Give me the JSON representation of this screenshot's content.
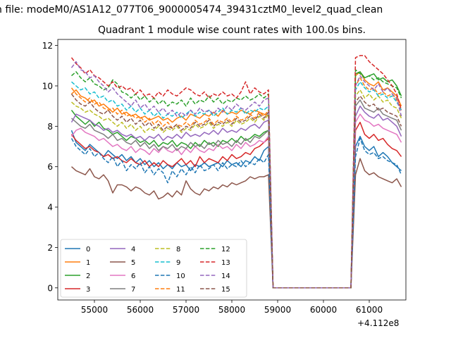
{
  "figure": {
    "suptitle": "n file: modeM0/AS1A12_077T06_9000005474_39431cztM0_level2_quad_clean",
    "title": "Quadrant 1 module wise count rates with 100.0s bins.",
    "x_offset_label": "+4.112e8"
  },
  "chart_data": {
    "type": "line",
    "title": "Quadrant 1 module wise count rates with 100.0s bins.",
    "xlim": [
      54200,
      61800
    ],
    "ylim": [
      -0.6,
      12.3
    ],
    "xticks": [
      55000,
      56000,
      57000,
      58000,
      59000,
      60000,
      61000
    ],
    "xtick_labels": [
      "55000",
      "56000",
      "57000",
      "58000",
      "59000",
      "60000",
      "61000"
    ],
    "yticks": [
      0,
      2,
      4,
      6,
      8,
      10,
      12
    ],
    "ytick_labels": [
      "0",
      "2",
      "4",
      "6",
      "8",
      "10",
      "12"
    ],
    "x_start": 54500,
    "x_step": 100,
    "gap": [
      58800,
      60600
    ],
    "legend": {
      "location": "lower-left",
      "columns": 4
    },
    "colors": [
      "#1f77b4",
      "#ff7f0e",
      "#2ca02c",
      "#d62728",
      "#9467bd",
      "#8c564b",
      "#e377c2",
      "#7f7f7f",
      "#bcbd22",
      "#17becf"
    ],
    "series": [
      {
        "name": "0",
        "style": "solid",
        "color": "#1f77b4",
        "values": [
          7.8,
          7.2,
          7.0,
          6.8,
          7.1,
          6.9,
          6.7,
          6.5,
          6.8,
          6.6,
          6.4,
          6.6,
          6.3,
          6.5,
          6.2,
          6.4,
          6.1,
          6.3,
          6.0,
          6.2,
          5.9,
          6.1,
          5.9,
          6.2,
          6.0,
          6.1,
          5.8,
          6.1,
          6.0,
          6.2,
          6.0,
          6.1,
          6.2,
          6.0,
          6.3,
          6.1,
          6.2,
          6.0,
          6.3,
          6.2,
          6.5,
          6.3,
          6.8,
          7.0
        ],
        "after": [
          0.0,
          0.0
        ],
        "tail": [
          0.0,
          7.0,
          7.5,
          7.0,
          6.8,
          7.0,
          6.5,
          6.7,
          6.5,
          6.2,
          6.0,
          5.8
        ]
      },
      {
        "name": "1",
        "style": "solid",
        "color": "#ff7f0e",
        "values": [
          9.6,
          9.8,
          9.5,
          9.4,
          9.2,
          9.3,
          9.0,
          9.1,
          8.9,
          8.7,
          8.9,
          8.6,
          8.7,
          8.5,
          8.6,
          8.4,
          8.5,
          8.3,
          8.4,
          8.5,
          8.3,
          8.4,
          8.2,
          8.4,
          8.5,
          8.3,
          8.6,
          8.5,
          8.4,
          8.6,
          8.5,
          8.7,
          8.5,
          8.8,
          8.6,
          8.7,
          8.6,
          8.8,
          8.7,
          8.6,
          8.8,
          8.7,
          8.6,
          8.5
        ],
        "after": [
          0.0,
          0.0
        ],
        "tail": [
          0.0,
          10.5,
          10.7,
          10.3,
          10.1,
          10.0,
          10.2,
          9.8,
          9.9,
          9.7,
          9.5,
          9.0
        ]
      },
      {
        "name": "2",
        "style": "solid",
        "color": "#2ca02c",
        "values": [
          8.8,
          8.5,
          8.3,
          8.1,
          8.3,
          8.0,
          8.2,
          7.9,
          7.8,
          7.6,
          7.7,
          7.5,
          7.3,
          7.5,
          7.4,
          7.2,
          7.3,
          7.1,
          7.3,
          7.0,
          7.2,
          7.1,
          7.3,
          7.0,
          7.2,
          7.1,
          6.9,
          7.2,
          7.0,
          7.3,
          7.1,
          7.2,
          7.0,
          7.3,
          7.2,
          7.4,
          7.2,
          7.5,
          7.3,
          7.4,
          7.6,
          7.5,
          7.7,
          7.8
        ],
        "after": [
          0.0,
          0.0
        ],
        "tail": [
          0.0,
          10.6,
          10.7,
          10.4,
          10.5,
          10.6,
          10.3,
          10.4,
          10.2,
          10.3,
          10.0,
          9.5
        ]
      },
      {
        "name": "3",
        "style": "solid",
        "color": "#d62728",
        "values": [
          7.6,
          7.3,
          7.1,
          6.9,
          7.0,
          6.8,
          6.7,
          6.5,
          6.6,
          6.4,
          6.5,
          6.3,
          6.2,
          6.4,
          6.2,
          6.1,
          6.3,
          6.0,
          6.2,
          6.0,
          6.3,
          6.1,
          6.0,
          6.2,
          6.4,
          6.1,
          6.3,
          6.0,
          6.5,
          6.2,
          6.4,
          6.3,
          6.2,
          6.5,
          6.3,
          6.6,
          6.4,
          6.5,
          6.7,
          6.6,
          6.9,
          7.0,
          7.2,
          7.4
        ],
        "after": [
          0.0,
          0.0
        ],
        "tail": [
          0.0,
          7.8,
          8.2,
          7.6,
          7.4,
          7.6,
          7.3,
          7.4,
          7.1,
          6.9,
          6.8,
          6.5
        ]
      },
      {
        "name": "4",
        "style": "solid",
        "color": "#9467bd",
        "values": [
          8.2,
          8.6,
          8.5,
          8.4,
          8.3,
          8.1,
          8.0,
          7.8,
          7.9,
          7.7,
          7.8,
          7.6,
          7.5,
          7.6,
          7.4,
          7.5,
          7.3,
          7.5,
          7.4,
          7.6,
          7.3,
          7.5,
          7.4,
          7.6,
          7.4,
          7.7,
          7.5,
          7.6,
          7.5,
          7.7,
          7.6,
          7.8,
          7.6,
          7.9,
          7.7,
          7.8,
          7.7,
          7.9,
          7.8,
          8.0,
          8.1,
          7.9,
          8.2,
          8.3
        ],
        "after": [
          0.0,
          0.0
        ],
        "tail": [
          0.0,
          8.5,
          9.0,
          8.7,
          8.5,
          8.4,
          8.6,
          8.3,
          8.4,
          8.2,
          8.0,
          7.5
        ]
      },
      {
        "name": "5",
        "style": "solid",
        "color": "#8c564b",
        "values": [
          6.0,
          5.8,
          5.7,
          5.6,
          5.9,
          5.5,
          5.4,
          5.6,
          5.3,
          4.7,
          5.1,
          5.1,
          5.0,
          4.8,
          5.0,
          4.9,
          4.7,
          4.6,
          4.8,
          4.4,
          4.5,
          4.7,
          4.5,
          4.8,
          4.6,
          5.3,
          4.9,
          4.7,
          4.6,
          4.9,
          4.8,
          5.0,
          4.9,
          5.1,
          5.0,
          5.2,
          5.1,
          5.2,
          5.3,
          5.5,
          5.4,
          5.5,
          5.5,
          5.6
        ],
        "after": [
          0.0,
          0.0
        ],
        "tail": [
          0.0,
          5.6,
          6.4,
          5.8,
          5.6,
          5.7,
          5.5,
          5.4,
          5.3,
          5.2,
          5.4,
          5.0
        ]
      },
      {
        "name": "6",
        "style": "solid",
        "color": "#e377c2",
        "values": [
          7.5,
          7.8,
          7.9,
          7.7,
          7.6,
          7.5,
          7.3,
          7.4,
          7.2,
          7.0,
          7.1,
          6.9,
          6.8,
          7.0,
          6.7,
          6.9,
          6.8,
          6.6,
          6.9,
          6.7,
          7.0,
          6.8,
          6.7,
          6.9,
          6.6,
          6.9,
          6.7,
          7.0,
          6.8,
          6.7,
          6.9,
          6.8,
          7.1,
          6.9,
          7.0,
          6.8,
          7.1,
          6.9,
          7.2,
          7.0,
          7.1,
          7.3,
          7.2,
          7.5
        ],
        "after": [
          0.0,
          0.0
        ],
        "tail": [
          0.0,
          8.2,
          8.6,
          8.3,
          8.2,
          8.0,
          8.1,
          7.9,
          7.8,
          7.7,
          7.6,
          7.2
        ]
      },
      {
        "name": "7",
        "style": "solid",
        "color": "#7f7f7f",
        "values": [
          8.4,
          8.2,
          8.0,
          7.9,
          8.1,
          7.8,
          7.7,
          7.6,
          7.4,
          7.6,
          7.3,
          7.4,
          7.2,
          7.1,
          7.3,
          7.0,
          7.2,
          6.9,
          7.1,
          6.8,
          7.0,
          6.9,
          7.1,
          6.8,
          7.0,
          6.9,
          7.2,
          7.0,
          7.1,
          6.9,
          7.2,
          7.0,
          7.3,
          7.1,
          7.2,
          7.0,
          7.3,
          7.1,
          7.4,
          7.2,
          7.5,
          7.4,
          7.6,
          7.8
        ],
        "after": [
          0.0,
          0.0
        ],
        "tail": [
          0.0,
          9.0,
          9.3,
          8.9,
          8.8,
          8.7,
          8.9,
          8.6,
          8.5,
          8.4,
          8.3,
          7.8
        ]
      },
      {
        "name": "8",
        "style": "dashed",
        "color": "#bcbd22",
        "values": [
          9.2,
          9.0,
          8.9,
          8.7,
          8.8,
          8.6,
          8.5,
          8.3,
          8.4,
          8.2,
          8.0,
          8.2,
          7.9,
          8.1,
          7.8,
          8.0,
          7.7,
          7.9,
          7.8,
          8.0,
          7.7,
          7.9,
          7.8,
          8.0,
          7.7,
          7.9,
          7.8,
          8.1,
          7.9,
          8.0,
          8.2,
          7.9,
          8.1,
          8.0,
          8.2,
          8.0,
          8.3,
          8.1,
          8.2,
          8.4,
          8.2,
          8.5,
          8.3,
          8.6
        ],
        "after": [
          0.0,
          0.0
        ],
        "tail": [
          0.0,
          9.5,
          9.8,
          9.4,
          9.6,
          9.3,
          9.5,
          9.2,
          9.3,
          9.0,
          8.9,
          8.4
        ]
      },
      {
        "name": "9",
        "style": "dashed",
        "color": "#17becf",
        "values": [
          10.2,
          10.0,
          9.8,
          9.9,
          9.6,
          9.7,
          9.4,
          9.5,
          9.2,
          9.3,
          9.0,
          9.1,
          8.8,
          9.0,
          8.7,
          8.9,
          8.6,
          8.8,
          8.5,
          8.7,
          8.4,
          8.6,
          8.5,
          8.7,
          8.4,
          8.6,
          8.8,
          8.5,
          8.7,
          8.6,
          8.8,
          8.5,
          8.7,
          8.9,
          8.6,
          8.8,
          8.7,
          8.9,
          8.6,
          8.8,
          8.7,
          8.9,
          8.8,
          9.0
        ],
        "after": [
          0.0,
          0.0
        ],
        "tail": [
          0.0,
          9.8,
          10.2,
          9.9,
          9.7,
          9.8,
          9.5,
          9.6,
          9.4,
          9.5,
          9.2,
          8.8
        ]
      },
      {
        "name": "10",
        "style": "dashed",
        "color": "#1f77b4",
        "values": [
          7.4,
          7.0,
          6.8,
          6.6,
          6.9,
          6.5,
          6.7,
          6.4,
          6.2,
          6.5,
          6.0,
          6.3,
          5.8,
          6.1,
          5.9,
          6.2,
          5.7,
          6.0,
          5.6,
          5.9,
          5.7,
          5.2,
          5.8,
          5.5,
          5.9,
          5.6,
          6.0,
          5.7,
          6.1,
          5.8,
          5.9,
          6.1,
          5.8,
          6.2,
          5.9,
          6.1,
          6.0,
          6.3,
          6.0,
          6.2,
          6.1,
          6.4,
          6.2,
          6.6
        ],
        "after": [
          0.0,
          0.0
        ],
        "tail": [
          0.0,
          6.5,
          7.4,
          6.8,
          6.6,
          6.7,
          6.4,
          6.5,
          6.3,
          6.2,
          6.1,
          5.6
        ]
      },
      {
        "name": "11",
        "style": "dashed",
        "color": "#ff7f0e",
        "values": [
          9.9,
          9.6,
          9.4,
          9.2,
          9.4,
          9.1,
          9.2,
          8.9,
          8.8,
          8.9,
          8.6,
          8.8,
          8.5,
          8.6,
          8.4,
          8.5,
          8.2,
          8.4,
          8.1,
          8.3,
          8.0,
          8.2,
          7.9,
          8.1,
          8.0,
          8.2,
          8.0,
          8.3,
          8.1,
          8.2,
          8.4,
          8.1,
          8.3,
          8.2,
          8.4,
          8.2,
          8.5,
          8.3,
          8.4,
          8.6,
          8.4,
          8.7,
          8.5,
          8.8
        ],
        "after": [
          0.0,
          0.0
        ],
        "tail": [
          0.0,
          10.0,
          10.4,
          10.0,
          9.8,
          9.9,
          9.6,
          9.7,
          9.5,
          9.6,
          9.3,
          8.9
        ]
      },
      {
        "name": "12",
        "style": "dashed",
        "color": "#2ca02c",
        "values": [
          10.5,
          10.7,
          10.4,
          10.2,
          10.4,
          10.1,
          10.0,
          9.8,
          9.9,
          10.3,
          10.1,
          9.7,
          9.6,
          9.4,
          9.6,
          9.3,
          9.5,
          9.2,
          9.4,
          9.1,
          9.3,
          9.0,
          9.2,
          9.1,
          9.3,
          9.0,
          9.4,
          9.1,
          9.3,
          9.2,
          9.5,
          9.2,
          9.4,
          9.1,
          9.3,
          9.2,
          9.4,
          9.3,
          9.5,
          9.3,
          9.4,
          9.6,
          9.4,
          9.6
        ],
        "after": [
          0.0,
          0.0
        ],
        "tail": [
          0.0,
          10.8,
          10.6,
          10.4,
          10.5,
          10.3,
          10.4,
          10.2,
          10.1,
          10.0,
          9.9,
          9.4
        ]
      },
      {
        "name": "13",
        "style": "dashed",
        "color": "#d62728",
        "values": [
          11.4,
          11.1,
          10.9,
          10.6,
          10.8,
          10.5,
          10.4,
          10.2,
          10.0,
          10.2,
          9.9,
          10.0,
          9.8,
          9.9,
          9.6,
          9.8,
          9.5,
          9.6,
          9.4,
          9.7,
          9.5,
          9.8,
          9.6,
          9.5,
          9.7,
          9.9,
          9.8,
          9.6,
          9.5,
          9.7,
          9.4,
          9.6,
          9.5,
          9.7,
          9.5,
          9.6,
          9.4,
          9.7,
          10.2,
          9.6,
          9.9,
          9.7,
          9.6,
          9.8
        ],
        "after": [
          0.0,
          0.0
        ],
        "tail": [
          0.0,
          11.4,
          11.5,
          11.5,
          11.2,
          11.0,
          10.8,
          10.6,
          10.3,
          10.0,
          9.6,
          8.8
        ]
      },
      {
        "name": "14",
        "style": "dashed",
        "color": "#9467bd",
        "values": [
          10.9,
          11.2,
          10.8,
          10.7,
          10.4,
          10.5,
          10.2,
          10.0,
          9.7,
          9.9,
          9.6,
          9.4,
          9.2,
          9.0,
          9.3,
          8.9,
          9.1,
          8.8,
          9.0,
          8.7,
          8.9,
          8.6,
          8.8,
          8.5,
          8.7,
          8.5,
          8.8,
          8.6,
          8.9,
          8.7,
          8.8,
          8.6,
          8.9,
          8.7,
          9.0,
          8.8,
          9.1,
          8.9,
          8.8,
          9.0,
          9.2,
          9.0,
          9.3,
          9.4
        ],
        "after": [
          0.0,
          0.0
        ],
        "tail": [
          0.0,
          10.0,
          10.5,
          10.2,
          10.0,
          9.8,
          10.1,
          9.7,
          9.9,
          9.6,
          9.4,
          8.5
        ]
      },
      {
        "name": "15",
        "style": "dashed",
        "color": "#8c564b",
        "values": [
          9.6,
          9.3,
          9.1,
          9.0,
          9.2,
          8.9,
          8.7,
          8.6,
          8.8,
          8.5,
          8.3,
          8.5,
          8.2,
          8.4,
          8.1,
          8.3,
          8.0,
          8.2,
          7.9,
          8.1,
          7.8,
          8.0,
          7.9,
          8.1,
          7.8,
          8.0,
          7.9,
          8.2,
          8.0,
          8.1,
          8.3,
          8.0,
          8.2,
          8.1,
          8.3,
          8.1,
          8.4,
          8.2,
          8.3,
          8.5,
          8.3,
          8.6,
          8.4,
          8.7
        ],
        "after": [
          0.0,
          0.0
        ],
        "tail": [
          0.0,
          9.2,
          9.5,
          9.2,
          9.0,
          9.1,
          8.8,
          8.9,
          8.7,
          8.6,
          8.5,
          8.0
        ]
      }
    ]
  }
}
